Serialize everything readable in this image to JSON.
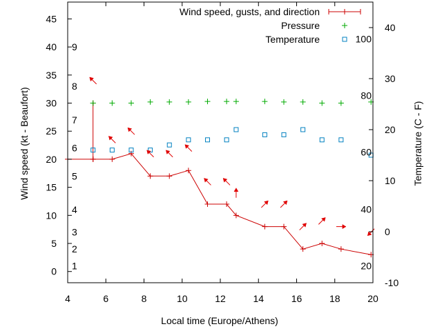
{
  "chart_data": {
    "type": "line",
    "xlabel": "Local time (Europe/Athens)",
    "ylabel": "Wind speed (kt - Beaufort)",
    "y2label": "Temperature (C - F)",
    "xlim": [
      4,
      20
    ],
    "ylim": [
      -2,
      48
    ],
    "y2lim": [
      -10,
      45
    ],
    "x_ticks": [
      4,
      6,
      8,
      10,
      12,
      14,
      16,
      18,
      20
    ],
    "y_ticks": [
      0,
      5,
      10,
      15,
      20,
      25,
      30,
      35,
      40,
      45
    ],
    "y2_ticks": [
      -10,
      0,
      10,
      20,
      30,
      40
    ],
    "beaufort_labels": [
      {
        "label": "1",
        "y": 1
      },
      {
        "label": "2",
        "y": 4
      },
      {
        "label": "3",
        "y": 7
      },
      {
        "label": "4",
        "y": 11
      },
      {
        "label": "5",
        "y": 17
      },
      {
        "label": "6",
        "y": 22
      },
      {
        "label": "7",
        "y": 27
      },
      {
        "label": "8",
        "y": 33
      },
      {
        "label": "9",
        "y": 40
      }
    ],
    "fahrenheit_labels": [
      {
        "label": "20",
        "c": -6.7
      },
      {
        "label": "40",
        "c": 4.4
      },
      {
        "label": "60",
        "c": 15.6
      },
      {
        "label": "80",
        "c": 26.7
      },
      {
        "label": "100",
        "c": 37.8
      }
    ],
    "legend_position": "top-right",
    "series": [
      {
        "name": "Wind speed, gusts, and direction",
        "color": "#cc0000",
        "x": [
          4,
          5.33,
          5.33,
          5.33,
          6.33,
          7.33,
          8.33,
          9.33,
          10.33,
          11.33,
          12.33,
          12.83,
          14.33,
          15.33,
          16.33,
          17.33,
          18.33,
          19.9
        ],
        "values": [
          20,
          20,
          30,
          20,
          20,
          21,
          17,
          17,
          18,
          12,
          12,
          10,
          8,
          8,
          4,
          5,
          4,
          3
        ]
      },
      {
        "name": "Pressure",
        "color": "#00aa00",
        "x": [
          5.33,
          6.33,
          7.33,
          8.33,
          9.33,
          10.33,
          11.33,
          12.33,
          12.83,
          14.33,
          15.33,
          16.33,
          17.33,
          18.33,
          19.9
        ],
        "values": [
          30,
          30,
          30,
          30.2,
          30.2,
          30.2,
          30.3,
          30.3,
          30.3,
          30.3,
          30.2,
          30.2,
          30,
          30,
          30.2
        ]
      },
      {
        "name": "Temperature",
        "color": "#0080c0",
        "x": [
          5.33,
          6.33,
          7.33,
          8.33,
          9.33,
          10.33,
          11.33,
          12.33,
          12.83,
          14.33,
          15.33,
          16.33,
          17.33,
          18.33,
          19.9
        ],
        "values": [
          16,
          16,
          16,
          16,
          17,
          18,
          18,
          18,
          20,
          19,
          19,
          20,
          18,
          18,
          15
        ]
      }
    ],
    "wind_arrows": [
      {
        "x": 5.33,
        "y": 34,
        "dir": "SE"
      },
      {
        "x": 6.33,
        "y": 23.5,
        "dir": "SE"
      },
      {
        "x": 7.33,
        "y": 25,
        "dir": "SE"
      },
      {
        "x": 8.33,
        "y": 21,
        "dir": "SE"
      },
      {
        "x": 9.33,
        "y": 21,
        "dir": "SE"
      },
      {
        "x": 10.33,
        "y": 22,
        "dir": "SE"
      },
      {
        "x": 11.33,
        "y": 16,
        "dir": "SE"
      },
      {
        "x": 12.33,
        "y": 16,
        "dir": "SE"
      },
      {
        "x": 12.83,
        "y": 14,
        "dir": "S"
      },
      {
        "x": 14.33,
        "y": 12,
        "dir": "SW"
      },
      {
        "x": 15.33,
        "y": 12,
        "dir": "SW"
      },
      {
        "x": 16.33,
        "y": 8,
        "dir": "SW"
      },
      {
        "x": 17.33,
        "y": 9,
        "dir": "SW"
      },
      {
        "x": 18.33,
        "y": 8,
        "dir": "W"
      },
      {
        "x": 19.9,
        "y": 7,
        "dir": "NE"
      }
    ]
  }
}
